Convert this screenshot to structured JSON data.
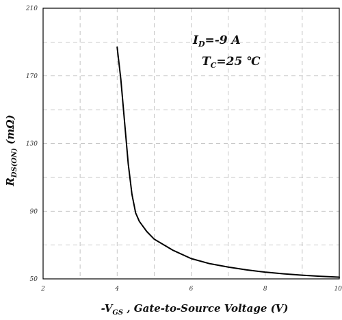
{
  "chart_data": {
    "type": "line",
    "xlabel": {
      "prefix": "-V",
      "sub": "GS",
      "rest": " , Gate-to-Source Voltage (V)"
    },
    "ylabel": {
      "prefix": "R",
      "sub": "DS(ON)",
      "rest": " (mΩ)"
    },
    "xlim": [
      2,
      10
    ],
    "ylim": [
      50,
      210
    ],
    "xticks": [
      "2",
      "4",
      "6",
      "8",
      "10"
    ],
    "yticks": [
      "50",
      "90",
      "130",
      "170",
      "210"
    ],
    "grid": true,
    "annotations": [
      {
        "prefix": "I",
        "sub": "D",
        "rest": "=-9 A"
      },
      {
        "prefix": "T",
        "sub": "C",
        "rest": "=25 ℃"
      }
    ],
    "series": [
      {
        "x": [
          4.0,
          4.1,
          4.2,
          4.3,
          4.4,
          4.5,
          4.6,
          4.8,
          5.0,
          5.5,
          6.0,
          6.5,
          7.0,
          7.5,
          8.0,
          8.5,
          9.0,
          9.5,
          10.0
        ],
        "y": [
          187,
          168,
          143,
          118,
          100,
          89,
          84,
          78,
          73.5,
          67,
          62,
          59,
          57,
          55.3,
          54,
          53,
          52.2,
          51.5,
          51
        ],
        "color": "#000000"
      }
    ]
  }
}
